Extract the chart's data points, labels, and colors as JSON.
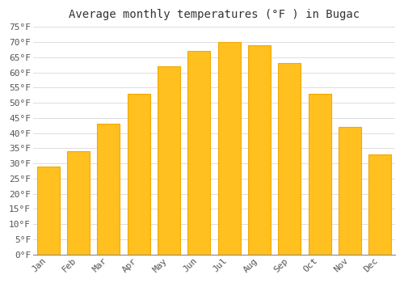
{
  "title": "Average monthly temperatures (°F ) in Bugac",
  "months": [
    "Jan",
    "Feb",
    "Mar",
    "Apr",
    "May",
    "Jun",
    "Jul",
    "Aug",
    "Sep",
    "Oct",
    "Nov",
    "Dec"
  ],
  "values": [
    29,
    34,
    43,
    53,
    62,
    67,
    70,
    69,
    63,
    53,
    42,
    33
  ],
  "bar_color": "#FFC020",
  "bar_edge_color": "#F5A800",
  "background_color": "#FFFFFF",
  "grid_color": "#DDDDDD",
  "text_color": "#555555",
  "ylim": [
    0,
    75
  ],
  "ytick_step": 5,
  "title_fontsize": 10,
  "tick_fontsize": 8,
  "font_family": "monospace"
}
